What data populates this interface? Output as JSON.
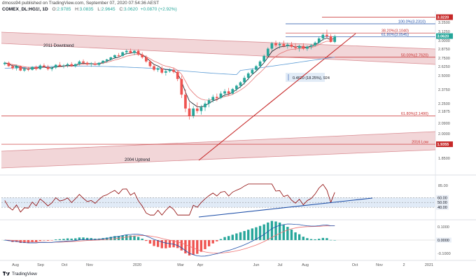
{
  "header": {
    "published": "dmoss94 published on TradingView.com, September 07, 2020 07:54:36 AEST",
    "symbol": "COMEX_DL:HG1!, 1D",
    "last": "3.0620",
    "change": "+0.0870 (+2.92%)",
    "o_label": "O:",
    "o_value": "2.9785",
    "h_label": "H:",
    "h_value": "3.0835",
    "l_label": "L:",
    "l_value": "2.9645",
    "c_label": "C:",
    "c_value": "3.0620"
  },
  "footer": {
    "brand": "TradingView"
  },
  "colors": {
    "up": "#26a69a",
    "down": "#ef5350",
    "channel": "#e8b4b8",
    "channel_line": "#d98c92",
    "ema_short": "#131722",
    "ema_mid": "#e57373",
    "ema_long": "#5b9bd5",
    "trend": "#c62828",
    "fib": "#c62828",
    "blue_level": "#1e4fa8",
    "rsi": "#8b0000",
    "rsi_band": "#c9daf0",
    "rsi_trend": "#1e4fa8",
    "macd": "#1e4fa8",
    "signal": "#ef7070",
    "hist_up": "#26a69a",
    "hist_down": "#ef5350"
  },
  "chart_data": [
    {
      "type": "candlestick",
      "title": "COMEX_DL:HG1!, 1D",
      "ylim": [
        1.84,
        3.37
      ],
      "x_ticks": [
        "Aug",
        "Sep",
        "Oct",
        "Nov",
        "2020",
        "Mar",
        "Apr",
        "Jun",
        "Jul",
        "Aug",
        "Oct",
        "Nov",
        "2",
        "2021"
      ],
      "y_ticks": [
        "3.2500",
        "3.1250",
        "3.0000",
        "2.8750",
        "2.7500",
        "2.6250",
        "2.5000",
        "2.3750",
        "2.2500",
        "2.1875",
        "2.0900",
        "2.0000",
        "1.8500"
      ],
      "price_badges": [
        {
          "label": "3.3220",
          "value": 3.322,
          "color": "#c62828"
        },
        {
          "label": "3.0620",
          "value": 3.062,
          "color": "#26a69a"
        },
        {
          "label": "1.9355",
          "value": 1.9355,
          "color": "#c62828"
        }
      ],
      "levels": [
        {
          "label": "100.0%(3.2310)",
          "value": 3.231,
          "color": "#1e4fa8"
        },
        {
          "label": "38.20%(3.1040)",
          "value": 3.104,
          "color": "#c62828"
        },
        {
          "label": "61.80%(3.0545)",
          "value": 3.0545,
          "color": "#1e4fa8"
        },
        {
          "label": "50.00%(2.7620)",
          "value": 2.762,
          "color": "#c62828"
        },
        {
          "label": "61.80%(2.1490)",
          "value": 2.149,
          "color": "#c62828"
        },
        {
          "label": "2016 Low",
          "value": 1.9355,
          "color": "#c62828"
        },
        {
          "label": "",
          "value": 3.322,
          "color": "#c62828"
        }
      ],
      "annotations": [
        {
          "label": "2011 Downtrend"
        },
        {
          "label": "2004 Uptrend"
        },
        {
          "label": "0.4620 (18.25%), 924"
        }
      ],
      "series": [
        {
          "name": "HG1! daily (sampled)",
          "ohlc": [
            [
              2.66,
              2.7,
              2.64,
              2.68
            ],
            [
              2.68,
              2.7,
              2.62,
              2.63
            ],
            [
              2.63,
              2.66,
              2.58,
              2.6
            ],
            [
              2.6,
              2.65,
              2.57,
              2.63
            ],
            [
              2.63,
              2.64,
              2.56,
              2.57
            ],
            [
              2.57,
              2.61,
              2.55,
              2.59
            ],
            [
              2.59,
              2.62,
              2.56,
              2.58
            ],
            [
              2.58,
              2.63,
              2.57,
              2.62
            ],
            [
              2.62,
              2.64,
              2.57,
              2.59
            ],
            [
              2.59,
              2.66,
              2.58,
              2.64
            ],
            [
              2.64,
              2.67,
              2.61,
              2.62
            ],
            [
              2.62,
              2.65,
              2.57,
              2.59
            ],
            [
              2.59,
              2.63,
              2.56,
              2.61
            ],
            [
              2.61,
              2.66,
              2.59,
              2.65
            ],
            [
              2.65,
              2.69,
              2.62,
              2.63
            ],
            [
              2.63,
              2.66,
              2.6,
              2.64
            ],
            [
              2.64,
              2.68,
              2.61,
              2.66
            ],
            [
              2.66,
              2.69,
              2.62,
              2.63
            ],
            [
              2.63,
              2.67,
              2.61,
              2.66
            ],
            [
              2.66,
              2.72,
              2.64,
              2.7
            ],
            [
              2.7,
              2.73,
              2.66,
              2.68
            ],
            [
              2.68,
              2.7,
              2.64,
              2.66
            ],
            [
              2.66,
              2.69,
              2.62,
              2.67
            ],
            [
              2.67,
              2.7,
              2.64,
              2.65
            ],
            [
              2.65,
              2.69,
              2.63,
              2.68
            ],
            [
              2.68,
              2.72,
              2.66,
              2.71
            ],
            [
              2.71,
              2.74,
              2.68,
              2.73
            ],
            [
              2.73,
              2.77,
              2.71,
              2.76
            ],
            [
              2.76,
              2.8,
              2.74,
              2.79
            ],
            [
              2.79,
              2.82,
              2.76,
              2.78
            ],
            [
              2.78,
              2.84,
              2.77,
              2.83
            ],
            [
              2.83,
              2.87,
              2.8,
              2.85
            ],
            [
              2.85,
              2.88,
              2.81,
              2.82
            ],
            [
              2.82,
              2.86,
              2.79,
              2.85
            ],
            [
              2.85,
              2.87,
              2.78,
              2.8
            ],
            [
              2.8,
              2.83,
              2.74,
              2.76
            ],
            [
              2.76,
              2.79,
              2.68,
              2.7
            ],
            [
              2.7,
              2.72,
              2.61,
              2.63
            ],
            [
              2.63,
              2.66,
              2.56,
              2.58
            ],
            [
              2.58,
              2.62,
              2.55,
              2.6
            ],
            [
              2.6,
              2.63,
              2.52,
              2.54
            ],
            [
              2.54,
              2.58,
              2.5,
              2.56
            ],
            [
              2.56,
              2.6,
              2.54,
              2.58
            ],
            [
              2.58,
              2.61,
              2.53,
              2.55
            ],
            [
              2.55,
              2.57,
              2.45,
              2.47
            ],
            [
              2.47,
              2.5,
              2.3,
              2.33
            ],
            [
              2.33,
              2.38,
              2.18,
              2.21
            ],
            [
              2.21,
              2.26,
              2.12,
              2.15
            ],
            [
              2.15,
              2.23,
              2.13,
              2.21
            ],
            [
              2.21,
              2.26,
              2.17,
              2.19
            ],
            [
              2.19,
              2.24,
              2.16,
              2.22
            ],
            [
              2.22,
              2.27,
              2.19,
              2.25
            ],
            [
              2.25,
              2.3,
              2.22,
              2.28
            ],
            [
              2.28,
              2.33,
              2.26,
              2.31
            ],
            [
              2.31,
              2.34,
              2.27,
              2.3
            ],
            [
              2.3,
              2.36,
              2.29,
              2.34
            ],
            [
              2.34,
              2.38,
              2.31,
              2.36
            ],
            [
              2.36,
              2.39,
              2.32,
              2.34
            ],
            [
              2.34,
              2.39,
              2.33,
              2.38
            ],
            [
              2.38,
              2.42,
              2.36,
              2.41
            ],
            [
              2.41,
              2.45,
              2.39,
              2.44
            ],
            [
              2.44,
              2.5,
              2.42,
              2.48
            ],
            [
              2.48,
              2.55,
              2.46,
              2.53
            ],
            [
              2.53,
              2.6,
              2.51,
              2.58
            ],
            [
              2.58,
              2.65,
              2.56,
              2.63
            ],
            [
              2.63,
              2.72,
              2.61,
              2.7
            ],
            [
              2.7,
              2.8,
              2.68,
              2.78
            ],
            [
              2.78,
              2.9,
              2.76,
              2.88
            ],
            [
              2.88,
              2.98,
              2.85,
              2.96
            ],
            [
              2.96,
              3.0,
              2.9,
              2.93
            ],
            [
              2.93,
              2.98,
              2.88,
              2.95
            ],
            [
              2.95,
              3.0,
              2.9,
              2.92
            ],
            [
              2.92,
              2.97,
              2.88,
              2.94
            ],
            [
              2.94,
              2.98,
              2.89,
              2.91
            ],
            [
              2.91,
              2.96,
              2.86,
              2.89
            ],
            [
              2.89,
              2.94,
              2.84,
              2.92
            ],
            [
              2.92,
              2.96,
              2.86,
              2.88
            ],
            [
              2.88,
              2.93,
              2.85,
              2.91
            ],
            [
              2.91,
              2.95,
              2.87,
              2.93
            ],
            [
              2.93,
              2.99,
              2.91,
              2.97
            ],
            [
              2.97,
              3.05,
              2.95,
              3.03
            ],
            [
              3.03,
              3.1,
              3.0,
              3.08
            ],
            [
              3.08,
              3.15,
              3.03,
              3.06
            ],
            [
              3.06,
              3.09,
              2.97,
              2.98
            ],
            [
              2.98,
              3.08,
              2.96,
              3.06
            ]
          ]
        }
      ]
    },
    {
      "type": "line",
      "title": "RSI",
      "ylim": [
        20,
        95
      ],
      "y_ticks": [
        "85.00",
        "60.00",
        "50.00",
        "40.00"
      ],
      "levels": [
        60,
        50,
        40
      ]
    },
    {
      "type": "line",
      "title": "MACD",
      "ylim": [
        -0.13,
        0.13
      ],
      "y_ticks": [
        "0.1000",
        "0.0000",
        "-0.1000"
      ]
    }
  ]
}
